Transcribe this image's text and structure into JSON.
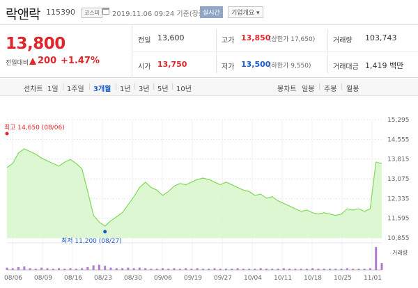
{
  "header": {
    "stock_name": "락앤락",
    "stock_code": "115390",
    "market": "코스피",
    "calendar_icon": "calendar-icon",
    "datetime": "2019.11.06 09:24 기준(장중)",
    "realtime_label": "실시간",
    "overview_label": "기업개요 ▾"
  },
  "price": {
    "current": "13,800",
    "change_label": "전일대비",
    "change_value": "200",
    "change_pct": "+1.47%",
    "up_color": "#e0262a",
    "down_color": "#1a5ccc"
  },
  "stats": {
    "prev_close_label": "전일",
    "prev_close": "13,600",
    "open_label": "시가",
    "open": "13,750",
    "high_label": "고가",
    "high": "13,850",
    "upper_limit": "(상한가 17,650)",
    "low_label": "저가",
    "low": "13,500",
    "lower_limit": "(하한가 9,550)",
    "volume_label": "거래량",
    "volume": "103,743",
    "amount_label": "거래대금",
    "amount": "1,419 백만"
  },
  "period_bar": {
    "line_chart_label": "선차트",
    "periods": [
      "1일",
      "1주일",
      "3개월",
      "1년",
      "3년",
      "5년",
      "10년"
    ],
    "selected": "3개월",
    "candle_label": "봉차트",
    "candle_periods": [
      "일봉",
      "주봉",
      "월봉"
    ]
  },
  "chart_data": {
    "type": "area",
    "y_ticks": [
      "15,295",
      "14,555",
      "13,815",
      "13,075",
      "12,335",
      "11,595",
      "10,855"
    ],
    "ylim": [
      10855,
      15295
    ],
    "x_ticks": [
      "08/06",
      "08/09",
      "08/16",
      "08/23",
      "08/30",
      "09/06",
      "09/19",
      "09/27",
      "10/04",
      "10/11",
      "10/18",
      "10/25",
      "11/01"
    ],
    "high_annotation": "최고 14,650 (08/06)",
    "low_annotation": "최저 11,200 (08/27)",
    "volume_label": "거래량",
    "line_color": "#7ed957",
    "fill_color": "#d6f5c8",
    "volume_color": "#b07bd1",
    "values": [
      13500,
      13650,
      14050,
      14200,
      14100,
      14000,
      13850,
      13750,
      13650,
      13550,
      13700,
      13800,
      13650,
      13450,
      12600,
      11700,
      11450,
      11300,
      11500,
      11650,
      11800,
      12100,
      12400,
      12750,
      12950,
      12750,
      12650,
      12450,
      12600,
      12800,
      12900,
      12850,
      12950,
      13050,
      13100,
      13050,
      12950,
      12850,
      12950,
      12850,
      12750,
      12650,
      12600,
      12450,
      12500,
      12350,
      12400,
      12250,
      12150,
      12050,
      11950,
      11850,
      11900,
      11800,
      11750,
      11800,
      11750,
      11700,
      11750,
      11950,
      11900,
      11950,
      11850,
      11950,
      13700,
      13650
    ],
    "volumes": [
      4,
      3,
      5,
      6,
      3,
      2,
      4,
      3,
      2,
      3,
      2,
      3,
      2,
      3,
      5,
      8,
      9,
      7,
      4,
      3,
      3,
      4,
      3,
      4,
      3,
      2,
      2,
      3,
      2,
      3,
      2,
      3,
      2,
      3,
      2,
      2,
      3,
      2,
      2,
      2,
      3,
      2,
      2,
      2,
      3,
      2,
      2,
      2,
      3,
      2,
      2,
      2,
      2,
      3,
      2,
      2,
      2,
      2,
      2,
      3,
      2,
      2,
      2,
      3,
      40,
      12
    ]
  }
}
